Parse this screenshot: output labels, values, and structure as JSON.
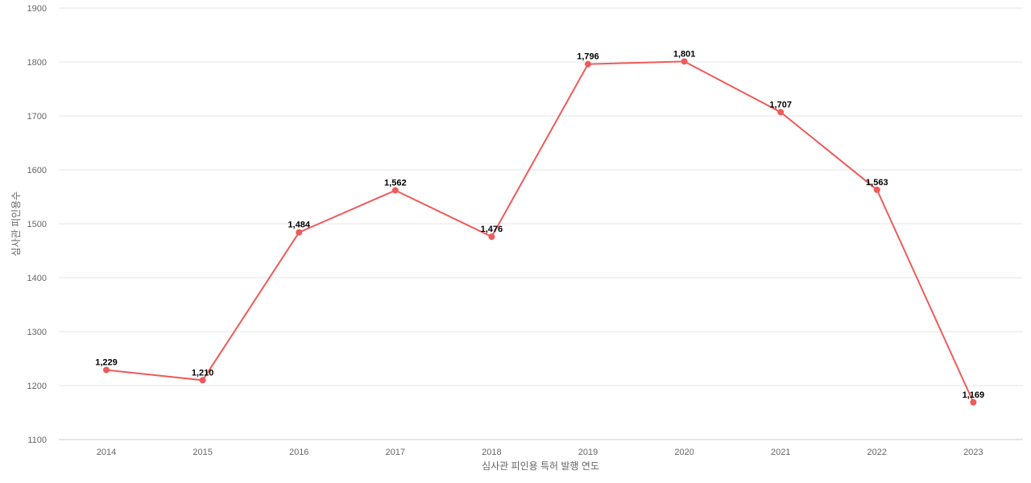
{
  "chart_data": {
    "type": "line",
    "title": "",
    "xlabel": "심사관 피인용 특허 발행 연도",
    "ylabel": "심사관 피인용수",
    "categories": [
      "2014",
      "2015",
      "2016",
      "2017",
      "2018",
      "2019",
      "2020",
      "2021",
      "2022",
      "2023"
    ],
    "ylim": [
      1100,
      1900
    ],
    "yticks": [
      1100,
      1200,
      1300,
      1400,
      1500,
      1600,
      1700,
      1800,
      1900
    ],
    "grid": true,
    "legend": "none",
    "series": [
      {
        "values": [
          1229,
          1210,
          1484,
          1562,
          1476,
          1796,
          1801,
          1707,
          1563,
          1169
        ],
        "data_labels": [
          "1,229",
          "1,210",
          "1,484",
          "1,562",
          "1,476",
          "1,796",
          "1,801",
          "1,707",
          "1,563",
          "1,169"
        ],
        "color": "#ef5a5a"
      }
    ]
  }
}
